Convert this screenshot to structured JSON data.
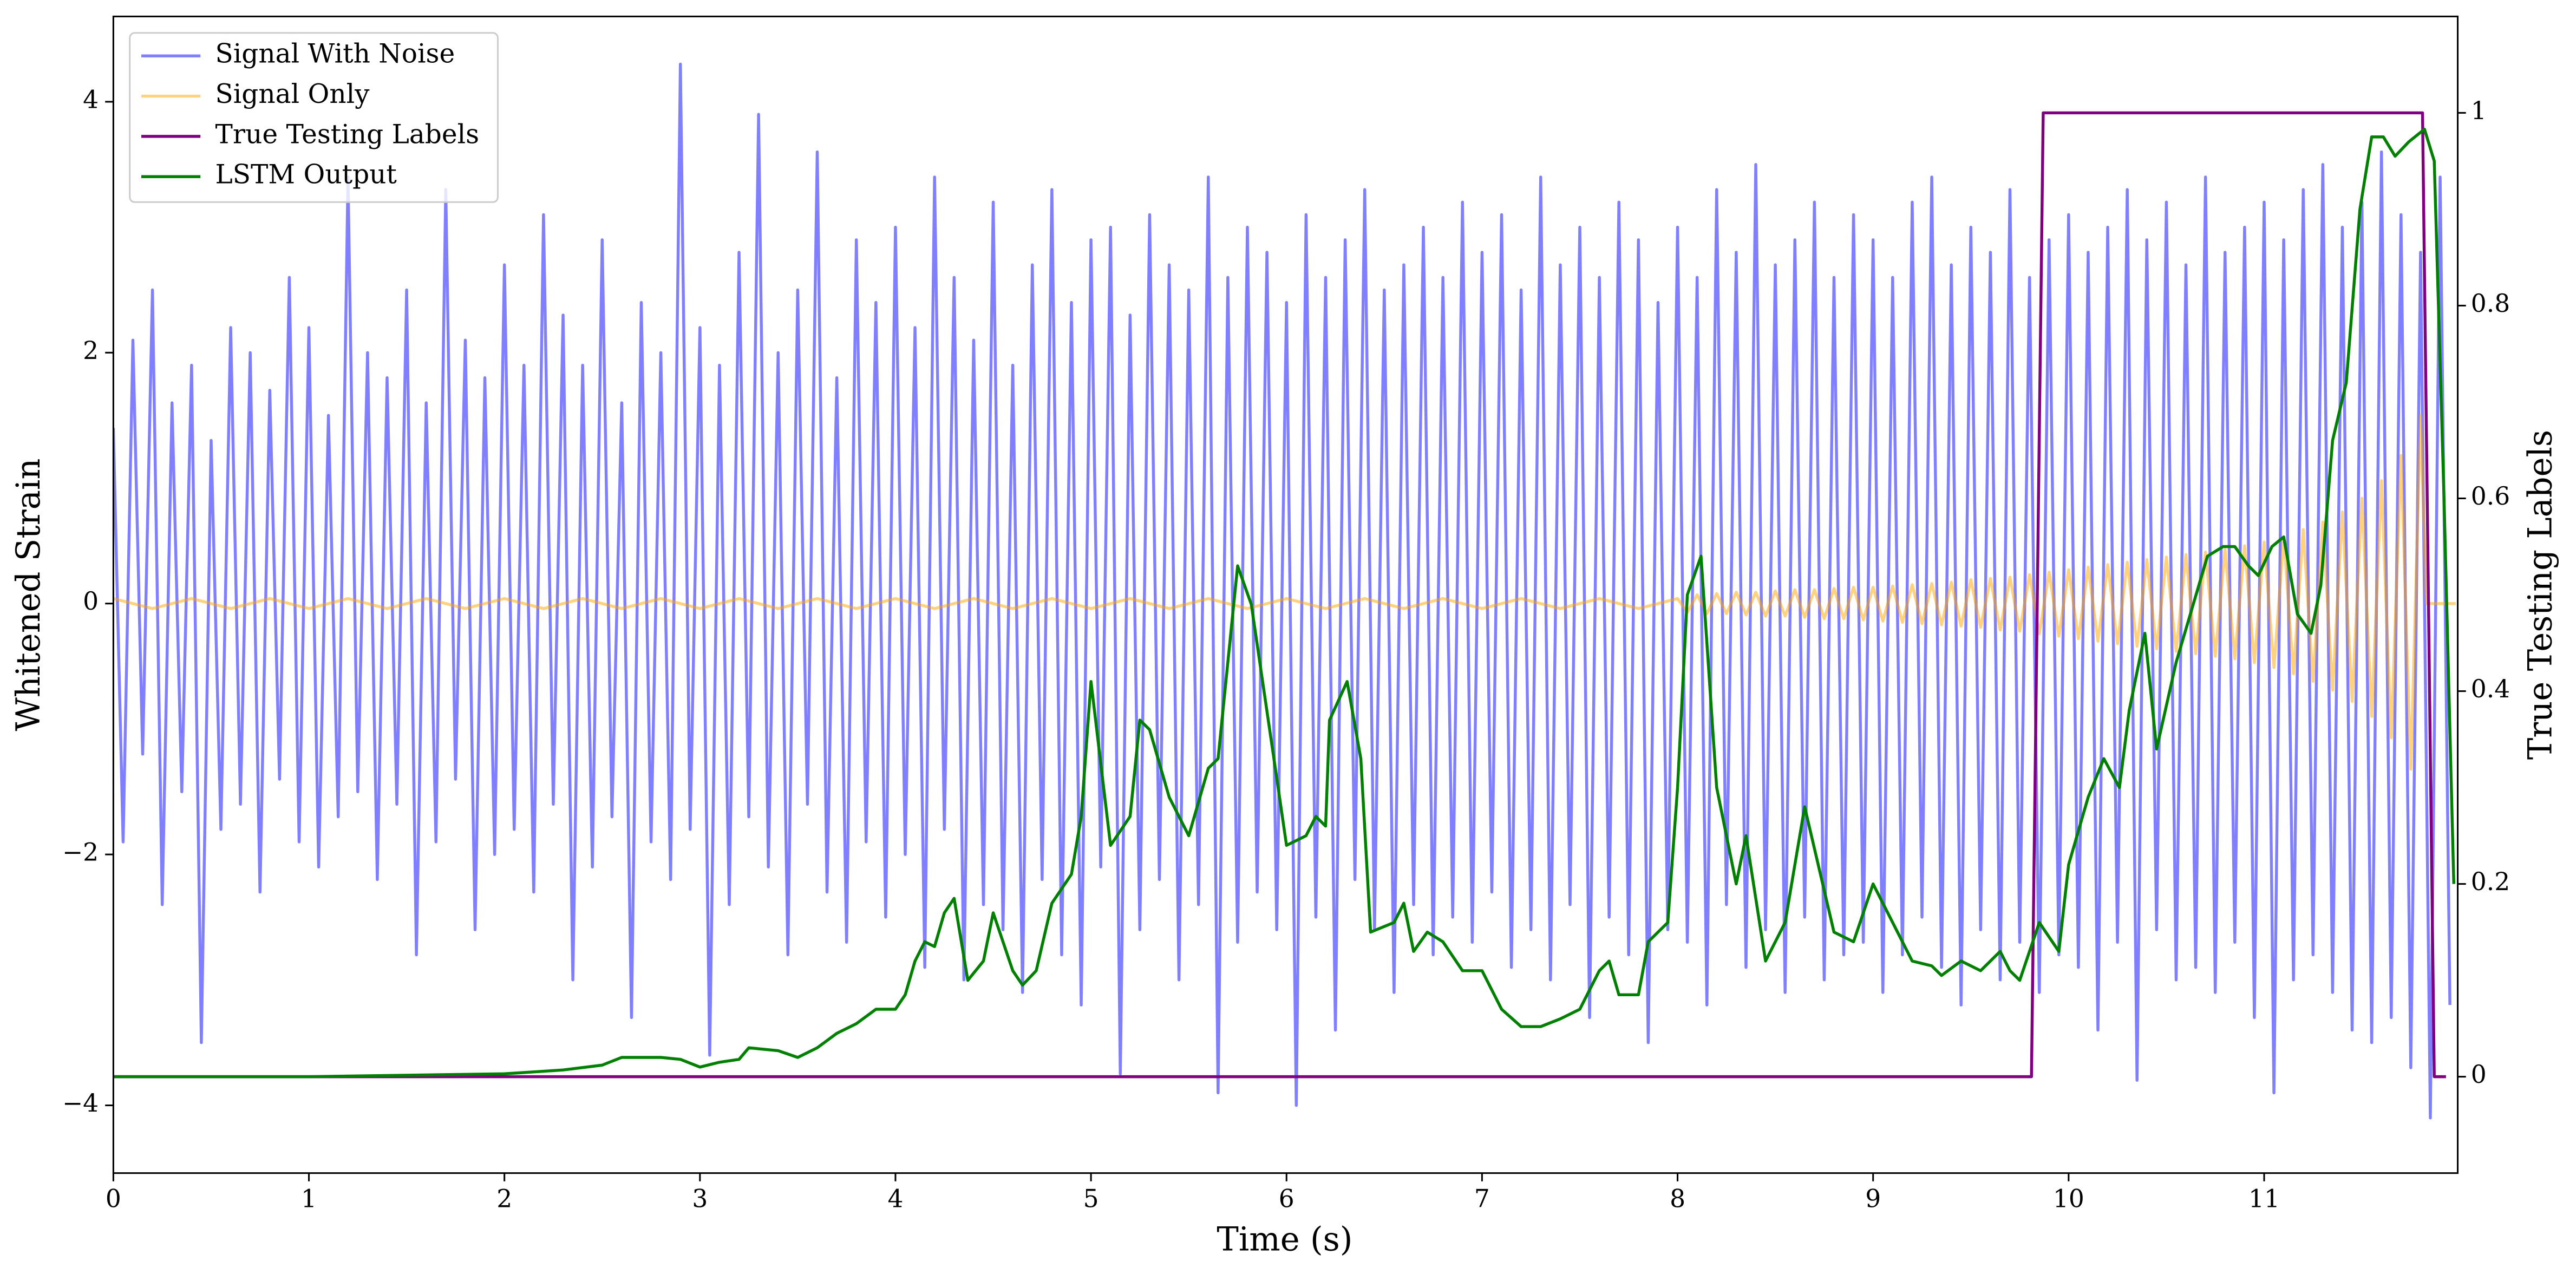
{
  "chart_data": {
    "type": "line",
    "xlabel": "Time (s)",
    "ylabel": "Whitened Strain",
    "y2label": "True Testing Labels",
    "xlim": [
      0,
      11.99
    ],
    "ylim": [
      -4.54,
      4.68
    ],
    "y2lim": [
      -0.1,
      1.1
    ],
    "xticks": [
      0,
      1,
      2,
      3,
      4,
      5,
      6,
      7,
      8,
      9,
      10,
      11
    ],
    "yticks": [
      {
        "value": -4,
        "label": "−4"
      },
      {
        "value": -2,
        "label": "−2"
      },
      0,
      2,
      4
    ],
    "y2ticks": [
      0.0,
      0.2,
      0.4,
      0.6,
      0.8,
      1.0
    ],
    "legend": "upper left",
    "series": [
      {
        "name": "Signal With Noise",
        "color": "#0000ff",
        "opacity": 0.5,
        "x": [
          0,
          0.05,
          0.1,
          0.15,
          0.2,
          0.25,
          0.3,
          0.35,
          0.4,
          0.45,
          0.5,
          0.55,
          0.6,
          0.65,
          0.7,
          0.75,
          0.8,
          0.85,
          0.9,
          0.95,
          1,
          1.05,
          1.1,
          1.15,
          1.2,
          1.25,
          1.3,
          1.35,
          1.4,
          1.45,
          1.5,
          1.55,
          1.6,
          1.65,
          1.7,
          1.75,
          1.8,
          1.85,
          1.9,
          1.95,
          2,
          2.05,
          2.1,
          2.15,
          2.2,
          2.25,
          2.3,
          2.35,
          2.4,
          2.45,
          2.5,
          2.55,
          2.6,
          2.65,
          2.7,
          2.75,
          2.8,
          2.85,
          2.9,
          2.95,
          3,
          3.05,
          3.1,
          3.15,
          3.2,
          3.25,
          3.3,
          3.35,
          3.4,
          3.45,
          3.5,
          3.55,
          3.6,
          3.65,
          3.7,
          3.75,
          3.8,
          3.85,
          3.9,
          3.95,
          4,
          4.05,
          4.1,
          4.15,
          4.2,
          4.25,
          4.3,
          4.35,
          4.4,
          4.45,
          4.5,
          4.55,
          4.6,
          4.65,
          4.7,
          4.75,
          4.8,
          4.85,
          4.9,
          4.95,
          5,
          5.05,
          5.1,
          5.15,
          5.2,
          5.25,
          5.3,
          5.35,
          5.4,
          5.45,
          5.5,
          5.55,
          5.6,
          5.65,
          5.7,
          5.75,
          5.8,
          5.85,
          5.9,
          5.95,
          6,
          6.05,
          6.1,
          6.15,
          6.2,
          6.25,
          6.3,
          6.35,
          6.4,
          6.45,
          6.5,
          6.55,
          6.6,
          6.65,
          6.7,
          6.75,
          6.8,
          6.85,
          6.9,
          6.95,
          7,
          7.05,
          7.1,
          7.15,
          7.2,
          7.25,
          7.3,
          7.35,
          7.4,
          7.45,
          7.5,
          7.55,
          7.6,
          7.65,
          7.7,
          7.75,
          7.8,
          7.85,
          7.9,
          7.95,
          8,
          8.05,
          8.1,
          8.15,
          8.2,
          8.25,
          8.3,
          8.35,
          8.4,
          8.45,
          8.5,
          8.55,
          8.6,
          8.65,
          8.7,
          8.75,
          8.8,
          8.85,
          8.9,
          8.95,
          9,
          9.05,
          9.1,
          9.15,
          9.2,
          9.25,
          9.3,
          9.35,
          9.4,
          9.45,
          9.5,
          9.55,
          9.6,
          9.65,
          9.7,
          9.75,
          9.8,
          9.85,
          9.9,
          9.95,
          10,
          10.05,
          10.1,
          10.15,
          10.2,
          10.25,
          10.3,
          10.35,
          10.4,
          10.45,
          10.5,
          10.55,
          10.6,
          10.65,
          10.7,
          10.75,
          10.8,
          10.85,
          10.9,
          10.95,
          11,
          11.05,
          11.1,
          11.15,
          11.2,
          11.25,
          11.3,
          11.35,
          11.4,
          11.45,
          11.5,
          11.55,
          11.6,
          11.65,
          11.7,
          11.75,
          11.8,
          11.85,
          11.9,
          11.95
        ],
        "values": [
          1.4,
          -1.9,
          2.1,
          -1.2,
          2.5,
          -2.4,
          1.6,
          -1.5,
          1.9,
          -3.5,
          1.3,
          -1.8,
          2.2,
          -1.6,
          2.0,
          -2.3,
          1.7,
          -1.4,
          2.6,
          -1.9,
          2.2,
          -2.1,
          1.5,
          -1.7,
          3.4,
          -1.5,
          2.0,
          -2.2,
          1.8,
          -1.6,
          2.5,
          -2.8,
          1.6,
          -1.9,
          3.3,
          -1.4,
          2.1,
          -2.6,
          1.8,
          -2.0,
          2.7,
          -1.8,
          1.9,
          -2.3,
          3.1,
          -1.6,
          2.3,
          -3.0,
          1.9,
          -2.1,
          2.9,
          -1.7,
          1.6,
          -3.3,
          2.4,
          -1.9,
          2.0,
          -2.2,
          4.3,
          -1.8,
          2.2,
          -3.6,
          1.9,
          -2.4,
          2.8,
          -1.7,
          3.9,
          -2.1,
          2.0,
          -2.8,
          2.5,
          -1.6,
          3.6,
          -2.3,
          1.8,
          -2.7,
          2.9,
          -1.9,
          2.4,
          -2.5,
          3.0,
          -2.0,
          2.2,
          -2.9,
          3.4,
          -1.8,
          2.6,
          -3.0,
          2.1,
          -2.4,
          3.2,
          -2.6,
          1.9,
          -3.1,
          2.7,
          -2.2,
          3.3,
          -2.8,
          2.4,
          -3.2,
          2.9,
          -2.1,
          3.0,
          -3.75,
          2.3,
          -2.6,
          3.1,
          -2.2,
          2.7,
          -3.0,
          2.5,
          -2.4,
          3.4,
          -3.9,
          2.6,
          -2.7,
          3.0,
          -2.3,
          2.8,
          -2.6,
          2.4,
          -4.0,
          3.1,
          -2.5,
          2.6,
          -3.4,
          2.9,
          -2.2,
          3.3,
          -2.6,
          2.5,
          -3.1,
          2.7,
          -2.4,
          3.0,
          -2.8,
          2.6,
          -2.5,
          3.2,
          -2.7,
          2.8,
          -2.3,
          3.1,
          -2.9,
          2.5,
          -2.6,
          3.4,
          -3.0,
          2.7,
          -2.4,
          3.0,
          -3.3,
          2.6,
          -2.5,
          3.2,
          -2.8,
          2.9,
          -3.5,
          2.4,
          -2.6,
          3.0,
          -2.7,
          2.6,
          -3.2,
          3.3,
          -2.4,
          2.8,
          -2.9,
          3.5,
          -2.6,
          2.7,
          -3.1,
          2.9,
          -2.5,
          3.2,
          -3.0,
          2.6,
          -2.8,
          3.1,
          -2.7,
          2.9,
          -3.1,
          2.6,
          -2.8,
          3.2,
          -2.5,
          3.4,
          -2.9,
          2.7,
          -3.2,
          3.0,
          -2.6,
          2.8,
          -3.0,
          3.3,
          -2.7,
          2.6,
          -3.1,
          2.9,
          -2.8,
          3.1,
          -2.9,
          2.8,
          -3.4,
          3.0,
          -2.7,
          3.3,
          -3.8,
          2.9,
          -2.6,
          3.2,
          -3.0,
          2.7,
          -2.9,
          3.4,
          -3.1,
          2.8,
          -2.7,
          3.0,
          -3.3,
          3.2,
          -3.9,
          2.9,
          -3.0,
          3.3,
          -2.8,
          3.5,
          -3.1,
          3.0,
          -3.4,
          3.2,
          -3.5,
          3.6,
          -3.3,
          3.1,
          -3.7,
          2.8,
          -4.1,
          3.4,
          -3.2
        ]
      },
      {
        "name": "Signal Only",
        "color": "#ffa500",
        "opacity": 0.5,
        "x": [
          0,
          0.2,
          0.4,
          0.6,
          0.8,
          1,
          1.2,
          1.4,
          1.6,
          1.8,
          2,
          2.2,
          2.4,
          2.6,
          2.8,
          3,
          3.2,
          3.4,
          3.6,
          3.8,
          4,
          4.2,
          4.4,
          4.6,
          4.8,
          5,
          5.2,
          5.4,
          5.6,
          5.8,
          6,
          6.2,
          6.4,
          6.6,
          6.8,
          7,
          7.2,
          7.4,
          7.6,
          7.8,
          8,
          8.05,
          8.1,
          8.15,
          8.2,
          8.25,
          8.3,
          8.35,
          8.4,
          8.45,
          8.5,
          8.55,
          8.6,
          8.65,
          8.7,
          8.75,
          8.8,
          8.85,
          8.9,
          8.95,
          9,
          9.05,
          9.1,
          9.15,
          9.2,
          9.25,
          9.3,
          9.35,
          9.4,
          9.45,
          9.5,
          9.55,
          9.6,
          9.65,
          9.7,
          9.75,
          9.8,
          9.85,
          9.9,
          9.95,
          10,
          10.05,
          10.1,
          10.15,
          10.2,
          10.25,
          10.3,
          10.35,
          10.4,
          10.45,
          10.5,
          10.55,
          10.6,
          10.65,
          10.7,
          10.75,
          10.8,
          10.85,
          10.9,
          10.95,
          11,
          11.05,
          11.1,
          11.15,
          11.2,
          11.25,
          11.3,
          11.35,
          11.4,
          11.45,
          11.5,
          11.55,
          11.6,
          11.65,
          11.7,
          11.75,
          11.8,
          11.83,
          11.98
        ],
        "values": [
          0.04,
          -0.04,
          0.04,
          -0.04,
          0.04,
          -0.04,
          0.04,
          -0.04,
          0.04,
          -0.04,
          0.04,
          -0.04,
          0.04,
          -0.04,
          0.04,
          -0.04,
          0.04,
          -0.04,
          0.04,
          -0.04,
          0.04,
          -0.04,
          0.04,
          -0.04,
          0.04,
          -0.04,
          0.04,
          -0.04,
          0.04,
          -0.04,
          0.04,
          -0.04,
          0.04,
          -0.04,
          0.04,
          -0.04,
          0.04,
          -0.04,
          0.04,
          -0.04,
          0.04,
          -0.07,
          0.07,
          -0.08,
          0.08,
          -0.08,
          0.09,
          -0.09,
          0.09,
          -0.1,
          0.1,
          -0.1,
          0.11,
          -0.11,
          0.11,
          -0.12,
          0.12,
          -0.12,
          0.13,
          -0.13,
          0.13,
          -0.14,
          0.14,
          -0.15,
          0.15,
          -0.16,
          0.16,
          -0.17,
          0.17,
          -0.18,
          0.19,
          -0.19,
          0.2,
          -0.21,
          0.21,
          -0.22,
          0.23,
          -0.24,
          0.25,
          -0.26,
          0.27,
          -0.28,
          0.29,
          -0.3,
          0.31,
          -0.32,
          0.33,
          -0.34,
          0.35,
          -0.36,
          0.37,
          -0.38,
          0.39,
          -0.4,
          0.41,
          -0.42,
          0.43,
          -0.44,
          0.46,
          -0.47,
          0.49,
          -0.51,
          0.53,
          -0.56,
          0.59,
          -0.62,
          0.65,
          -0.69,
          0.73,
          -0.78,
          0.84,
          -0.9,
          0.98,
          -1.07,
          1.18,
          -1.32,
          1.5,
          0,
          0
        ]
      },
      {
        "name": "True Testing Labels",
        "color": "#800080",
        "axis": "y2",
        "x": [
          0,
          9.81,
          9.87,
          11.81,
          11.87,
          11.93
        ],
        "values": [
          0,
          0,
          1,
          1,
          0,
          0
        ]
      },
      {
        "name": "LSTM Output",
        "color": "#008000",
        "axis": "y2",
        "x": [
          0,
          1,
          2,
          2.3,
          2.5,
          2.6,
          2.7,
          2.8,
          2.9,
          3.0,
          3.1,
          3.2,
          3.25,
          3.4,
          3.5,
          3.6,
          3.7,
          3.8,
          3.9,
          4.0,
          4.05,
          4.1,
          4.15,
          4.2,
          4.25,
          4.3,
          4.37,
          4.45,
          4.5,
          4.6,
          4.65,
          4.72,
          4.8,
          4.9,
          4.95,
          5.0,
          5.1,
          5.2,
          5.25,
          5.3,
          5.4,
          5.5,
          5.6,
          5.65,
          5.75,
          5.82,
          5.95,
          6.0,
          6.1,
          6.15,
          6.2,
          6.22,
          6.31,
          6.38,
          6.43,
          6.55,
          6.6,
          6.65,
          6.72,
          6.8,
          6.9,
          7.0,
          7.1,
          7.2,
          7.3,
          7.4,
          7.5,
          7.6,
          7.65,
          7.7,
          7.8,
          7.85,
          7.95,
          8.0,
          8.05,
          8.12,
          8.2,
          8.3,
          8.35,
          8.45,
          8.55,
          8.65,
          8.8,
          8.9,
          9.0,
          9.1,
          9.2,
          9.3,
          9.35,
          9.45,
          9.55,
          9.65,
          9.7,
          9.75,
          9.85,
          9.95,
          10.0,
          10.1,
          10.18,
          10.26,
          10.31,
          10.39,
          10.45,
          10.55,
          10.71,
          10.79,
          10.85,
          10.92,
          10.97,
          11.04,
          11.1,
          11.17,
          11.24,
          11.29,
          11.35,
          11.42,
          11.49,
          11.55,
          11.61,
          11.67,
          11.74,
          11.82,
          11.87,
          11.92,
          11.97
        ],
        "values": [
          0,
          0,
          0.003,
          0.007,
          0.012,
          0.02,
          0.02,
          0.02,
          0.018,
          0.01,
          0.015,
          0.018,
          0.03,
          0.027,
          0.02,
          0.03,
          0.045,
          0.055,
          0.07,
          0.07,
          0.085,
          0.12,
          0.14,
          0.135,
          0.17,
          0.185,
          0.1,
          0.12,
          0.17,
          0.11,
          0.095,
          0.11,
          0.18,
          0.21,
          0.27,
          0.41,
          0.24,
          0.27,
          0.37,
          0.36,
          0.29,
          0.25,
          0.32,
          0.33,
          0.53,
          0.49,
          0.31,
          0.24,
          0.25,
          0.27,
          0.26,
          0.37,
          0.41,
          0.33,
          0.15,
          0.16,
          0.18,
          0.13,
          0.15,
          0.14,
          0.11,
          0.11,
          0.07,
          0.052,
          0.052,
          0.06,
          0.07,
          0.11,
          0.12,
          0.085,
          0.085,
          0.14,
          0.16,
          0.3,
          0.5,
          0.54,
          0.3,
          0.2,
          0.25,
          0.12,
          0.16,
          0.28,
          0.15,
          0.14,
          0.2,
          0.16,
          0.12,
          0.115,
          0.105,
          0.12,
          0.11,
          0.13,
          0.11,
          0.1,
          0.16,
          0.13,
          0.22,
          0.29,
          0.33,
          0.3,
          0.38,
          0.46,
          0.34,
          0.43,
          0.54,
          0.55,
          0.55,
          0.53,
          0.52,
          0.55,
          0.56,
          0.48,
          0.46,
          0.51,
          0.66,
          0.72,
          0.9,
          0.975,
          0.975,
          0.955,
          0.97,
          0.983,
          0.95,
          0.6,
          0.2
        ]
      }
    ]
  }
}
